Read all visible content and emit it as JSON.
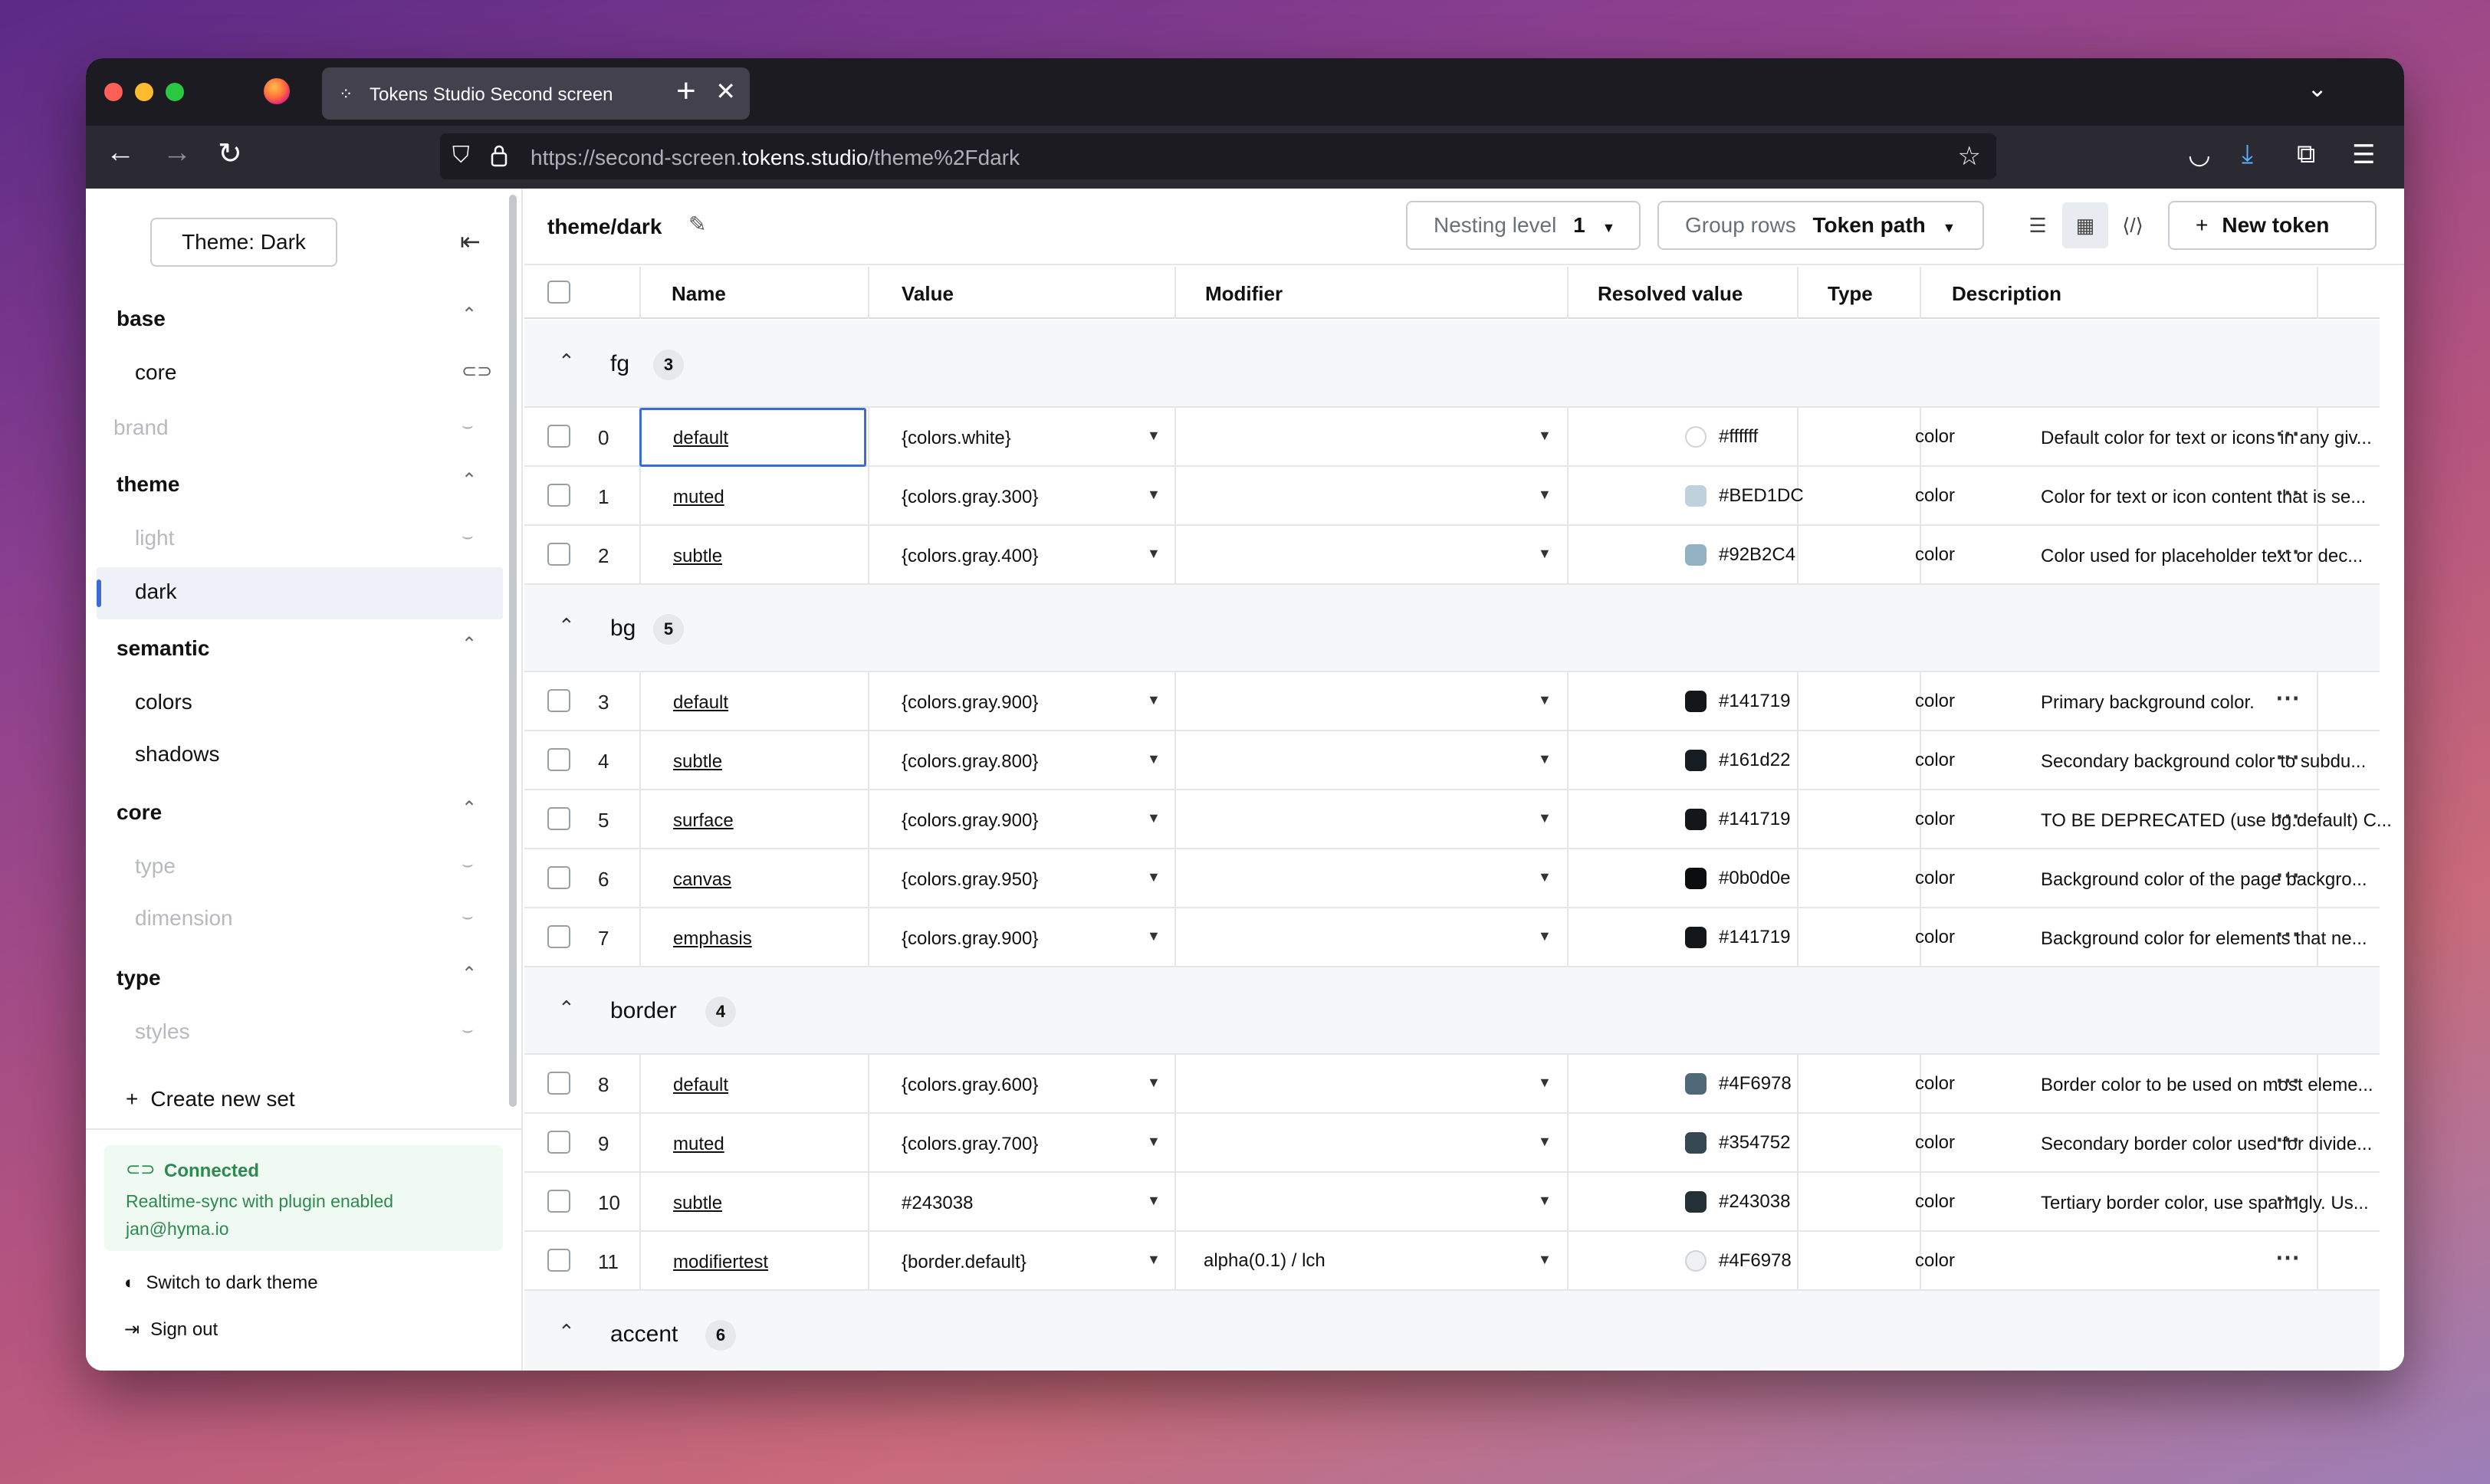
{
  "browser": {
    "tab_title": "Tokens Studio Second screen",
    "tab_close": "✕",
    "new_tab": "+",
    "tab_list": "⌄",
    "url_prefix": "https://second-screen.",
    "url_domain": "tokens.studio",
    "url_path": "/theme%2Fdark",
    "back": "←",
    "forward": "→",
    "reload": "↻"
  },
  "sidebar": {
    "theme_button": "Theme: Dark",
    "collapse_icon": "⇤",
    "groups": [
      {
        "label": "base",
        "chevron": "⌃"
      },
      {
        "label": "theme",
        "chevron": "⌃"
      },
      {
        "label": "semantic",
        "chevron": "⌃"
      },
      {
        "label": "core",
        "chevron": "⌃"
      },
      {
        "label": "type",
        "chevron": "⌃"
      }
    ],
    "items": {
      "core": "core",
      "brand": "brand",
      "light": "light",
      "dark": "dark",
      "colors": "colors",
      "shadows": "shadows",
      "type": "type",
      "dimension": "dimension",
      "styles": "styles"
    },
    "create_set": "Create new set",
    "connection": {
      "title": "Connected",
      "line1": "Realtime-sync with plugin enabled",
      "line2": "jan@hyma.io"
    },
    "switch_theme": "Switch to dark theme",
    "sign_out": "Sign out"
  },
  "main": {
    "title": "theme/dark",
    "nesting_label": "Nesting level",
    "nesting_value": "1",
    "group_rows_label": "Group rows",
    "group_rows_value": "Token path",
    "new_token": "New token",
    "columns": [
      "Name",
      "Value",
      "Modifier",
      "Resolved value",
      "Type",
      "Description"
    ]
  },
  "groups": [
    {
      "name": "fg",
      "count": "3",
      "tokens": [
        {
          "idx": "0",
          "name": "default",
          "value": "{colors.white}",
          "modifier": "",
          "resolved": "#ffffff",
          "color": "#ffffff",
          "type": "color",
          "desc": "Default color for text or icons in any giv..."
        },
        {
          "idx": "1",
          "name": "muted",
          "value": "{colors.gray.300}",
          "modifier": "",
          "resolved": "#BED1DC",
          "color": "#BED1DC",
          "type": "color",
          "desc": "Color for text or icon content that is se..."
        },
        {
          "idx": "2",
          "name": "subtle",
          "value": "{colors.gray.400}",
          "modifier": "",
          "resolved": "#92B2C4",
          "color": "#92B2C4",
          "type": "color",
          "desc": "Color used for placeholder text or dec..."
        }
      ]
    },
    {
      "name": "bg",
      "count": "5",
      "tokens": [
        {
          "idx": "3",
          "name": "default",
          "value": "{colors.gray.900}",
          "modifier": "",
          "resolved": "#141719",
          "color": "#141719",
          "type": "color",
          "desc": "Primary background color."
        },
        {
          "idx": "4",
          "name": "subtle",
          "value": "{colors.gray.800}",
          "modifier": "",
          "resolved": "#161d22",
          "color": "#161d22",
          "type": "color",
          "desc": "Secondary background color to subdu..."
        },
        {
          "idx": "5",
          "name": "surface",
          "value": "{colors.gray.900}",
          "modifier": "",
          "resolved": "#141719",
          "color": "#141719",
          "type": "color",
          "desc": "TO BE DEPRECATED (use bg.default) C..."
        },
        {
          "idx": "6",
          "name": "canvas",
          "value": "{colors.gray.950}",
          "modifier": "",
          "resolved": "#0b0d0e",
          "color": "#0b0d0e",
          "type": "color",
          "desc": "Background color of the page backgro..."
        },
        {
          "idx": "7",
          "name": "emphasis",
          "value": "{colors.gray.900}",
          "modifier": "",
          "resolved": "#141719",
          "color": "#141719",
          "type": "color",
          "desc": "Background color for elements that ne..."
        }
      ]
    },
    {
      "name": "border",
      "count": "4",
      "tokens": [
        {
          "idx": "8",
          "name": "default",
          "value": "{colors.gray.600}",
          "modifier": "",
          "resolved": "#4F6978",
          "color": "#4F6978",
          "type": "color",
          "desc": "Border color to be used on most eleme..."
        },
        {
          "idx": "9",
          "name": "muted",
          "value": "{colors.gray.700}",
          "modifier": "",
          "resolved": "#354752",
          "color": "#354752",
          "type": "color",
          "desc": "Secondary border color used for divide..."
        },
        {
          "idx": "10",
          "name": "subtle",
          "value": "#243038",
          "modifier": "",
          "resolved": "#243038",
          "color": "#243038",
          "type": "color",
          "desc": "Tertiary border color, use sparingly. Us..."
        },
        {
          "idx": "11",
          "name": "modifiertest",
          "value": "{border.default}",
          "modifier": "alpha(0.1) / lch",
          "resolved": "#4F6978",
          "color": "#f0f1f3",
          "type": "color",
          "desc": ""
        }
      ]
    },
    {
      "name": "accent",
      "count": "6",
      "tokens": []
    }
  ]
}
